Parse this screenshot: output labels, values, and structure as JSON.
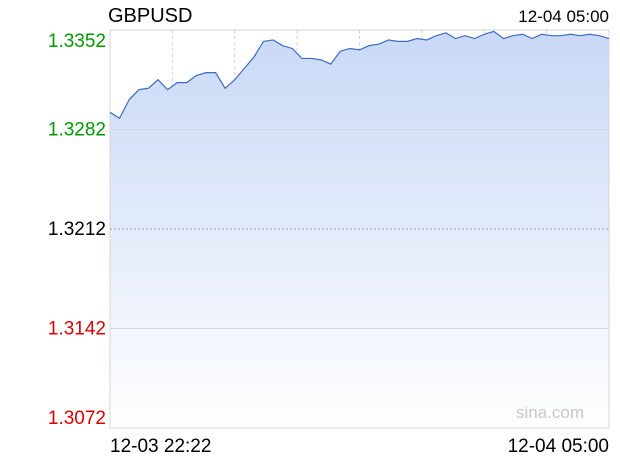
{
  "chart_data": {
    "type": "area",
    "title": "GBPUSD",
    "timestamp": "12-04 05:00",
    "watermark": "sina.com",
    "categories": [
      "12-03 22:22",
      null,
      null,
      null,
      null,
      null,
      null,
      null,
      null,
      null,
      null,
      null,
      null,
      null,
      null,
      null,
      null,
      null,
      null,
      null,
      null,
      null,
      null,
      null,
      null,
      null,
      null,
      null,
      null,
      null,
      null,
      null,
      null,
      null,
      null,
      null,
      null,
      null,
      null,
      null,
      null,
      null,
      null,
      null,
      null,
      null,
      null,
      null,
      null,
      null,
      null,
      null,
      "12-04 05:00"
    ],
    "series": [
      {
        "name": "GBPUSD",
        "color": "#3d6cc0",
        "values": [
          1.3294,
          1.329,
          1.3303,
          1.331,
          1.3311,
          1.3317,
          1.331,
          1.3315,
          1.3315,
          1.332,
          1.3322,
          1.3322,
          1.3311,
          1.3317,
          1.3325,
          1.3333,
          1.3344,
          1.3345,
          1.3341,
          1.3339,
          1.3332,
          1.3332,
          1.3331,
          1.3328,
          1.3337,
          1.3339,
          1.3338,
          1.3341,
          1.3342,
          1.3345,
          1.3344,
          1.3344,
          1.3346,
          1.3345,
          1.3348,
          1.335,
          1.3346,
          1.3348,
          1.3346,
          1.3349,
          1.3351,
          1.3346,
          1.3348,
          1.3349,
          1.3346,
          1.3349,
          1.3348,
          1.3348,
          1.3349,
          1.3348,
          1.3349,
          1.3348,
          1.3346
        ]
      }
    ],
    "ylim": [
      1.3072,
      1.3352
    ],
    "yticks": [
      1.3352,
      1.3282,
      1.3212,
      1.3142,
      1.3072
    ],
    "ytick_colors": [
      "#009900",
      "#009900",
      "#000000",
      "#dd0000",
      "#dd0000"
    ],
    "fill_color": "#c8d8f6",
    "grid": true
  }
}
